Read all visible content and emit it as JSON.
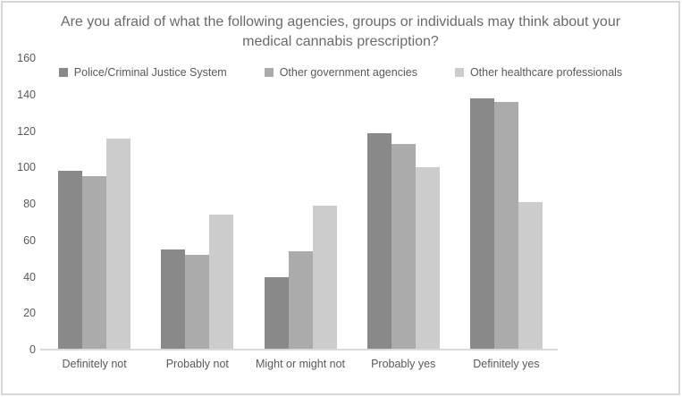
{
  "chart_data": {
    "type": "bar",
    "title": "Are you afraid of what the following agencies, groups or individuals may think about your medical cannabis prescription?",
    "categories": [
      "Definitely not",
      "Probably not",
      "Might or might not",
      "Probably yes",
      "Definitely yes"
    ],
    "series": [
      {
        "name": "Police/Criminal Justice System",
        "color": "#898989",
        "values": [
          98,
          55,
          40,
          119,
          138
        ]
      },
      {
        "name": "Other government agencies",
        "color": "#ababab",
        "values": [
          95,
          52,
          54,
          113,
          136
        ]
      },
      {
        "name": "Other healthcare professionals",
        "color": "#cccccc",
        "values": [
          116,
          74,
          79,
          100,
          81
        ]
      }
    ],
    "xlabel": "",
    "ylabel": "",
    "ylim": [
      0,
      160
    ],
    "y_ticks": [
      0,
      20,
      40,
      60,
      80,
      100,
      120,
      140,
      160
    ],
    "grid": false,
    "legend_position": "top-center"
  },
  "colors": {
    "background": "#ffffff",
    "frame_border": "#d6d6d6",
    "title_text": "#6a6a6a",
    "axis_text": "#595959",
    "axis_line": "#d9d9d9"
  }
}
